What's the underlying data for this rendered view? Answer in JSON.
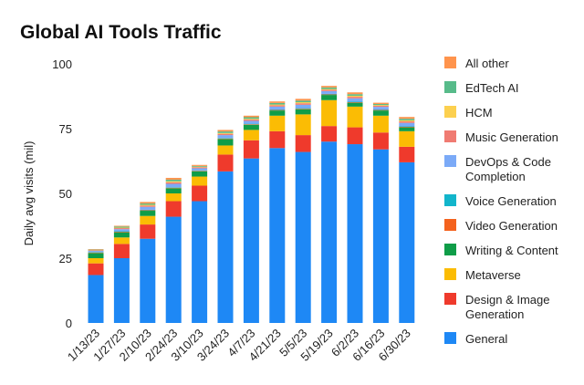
{
  "chart_data": {
    "type": "bar",
    "stacked": true,
    "title": "Global AI Tools Traffic",
    "xlabel": "",
    "ylabel": "Daily avg visits (mil)",
    "ylim": [
      0,
      100
    ],
    "yticks": [
      0,
      25,
      50,
      75,
      100
    ],
    "grid": false,
    "legend_position": "right",
    "categories": [
      "1/13/23",
      "1/27/23",
      "2/10/23",
      "2/24/23",
      "3/10/23",
      "3/24/23",
      "4/7/23",
      "4/21/23",
      "5/5/23",
      "5/19/23",
      "6/2/23",
      "6/16/23",
      "6/30/23"
    ],
    "series": [
      {
        "name": "General",
        "color": "#1e88f5",
        "values": [
          18.5,
          25,
          32.5,
          41,
          47,
          58.5,
          63.5,
          67.5,
          66,
          70,
          69,
          67,
          62
        ]
      },
      {
        "name": "Design & Image Generation",
        "color": "#ef3a2c",
        "values": [
          4.5,
          5.5,
          5.5,
          6,
          6,
          6.5,
          7,
          6.5,
          6.5,
          6,
          6.5,
          6.5,
          6
        ]
      },
      {
        "name": "Metaverse",
        "color": "#fbbc04",
        "values": [
          2,
          2.5,
          3.3,
          3,
          3.5,
          3.5,
          4,
          6,
          8,
          10,
          8,
          6.5,
          6
        ]
      },
      {
        "name": "Writing & Content",
        "color": "#0f9d48",
        "values": [
          2,
          2,
          2,
          2,
          2,
          2.5,
          2,
          2,
          2,
          2,
          1.5,
          2,
          1.5
        ]
      },
      {
        "name": "Video Generation",
        "color": "#f4621e",
        "values": [
          0.2,
          0.2,
          0.2,
          0.2,
          0.2,
          0.2,
          0.2,
          0.2,
          0.2,
          0.2,
          0.2,
          0.2,
          0.2
        ]
      },
      {
        "name": "Voice Generation",
        "color": "#12b5cb",
        "values": [
          0.2,
          0.2,
          0.2,
          0.2,
          0.2,
          0.2,
          0.2,
          0.2,
          0.2,
          0.2,
          0.2,
          0.2,
          0.2
        ]
      },
      {
        "name": "DevOps & Code Completion",
        "color": "#7baaf7",
        "values": [
          0.4,
          0.8,
          1.1,
          1.3,
          0.8,
          1.1,
          1.1,
          1.1,
          1.3,
          1.1,
          1.3,
          1,
          1.3
        ]
      },
      {
        "name": "Music Generation",
        "color": "#f07b72",
        "values": [
          0.2,
          0.4,
          0.5,
          0.6,
          0.4,
          0.5,
          0.5,
          0.5,
          0.6,
          0.5,
          0.6,
          0.4,
          0.6
        ]
      },
      {
        "name": "HCM",
        "color": "#fcd04f",
        "values": [
          0.1,
          0.2,
          0.3,
          0.4,
          0.2,
          0.3,
          0.3,
          0.3,
          0.4,
          0.3,
          0.4,
          0.3,
          0.4
        ]
      },
      {
        "name": "EdTech AI",
        "color": "#57bb8a",
        "values": [
          0.2,
          0.4,
          0.5,
          0.6,
          0.3,
          0.6,
          0.6,
          0.6,
          0.6,
          0.6,
          0.6,
          0.4,
          0.6
        ]
      },
      {
        "name": "All other",
        "color": "#ff944d",
        "values": [
          0.2,
          0.3,
          0.6,
          0.7,
          0.4,
          0.6,
          0.6,
          0.6,
          0.7,
          0.6,
          0.7,
          0.5,
          0.7
        ]
      }
    ],
    "legend_order": [
      "All other",
      "EdTech AI",
      "HCM",
      "Music Generation",
      "DevOps & Code Completion",
      "Voice Generation",
      "Video Generation",
      "Writing & Content",
      "Metaverse",
      "Design & Image Generation",
      "General"
    ],
    "legend_lines": {
      "DevOps & Code Completion": [
        "DevOps & Code",
        "Completion"
      ],
      "Design & Image Generation": [
        "Design & Image",
        "Generation"
      ]
    }
  }
}
